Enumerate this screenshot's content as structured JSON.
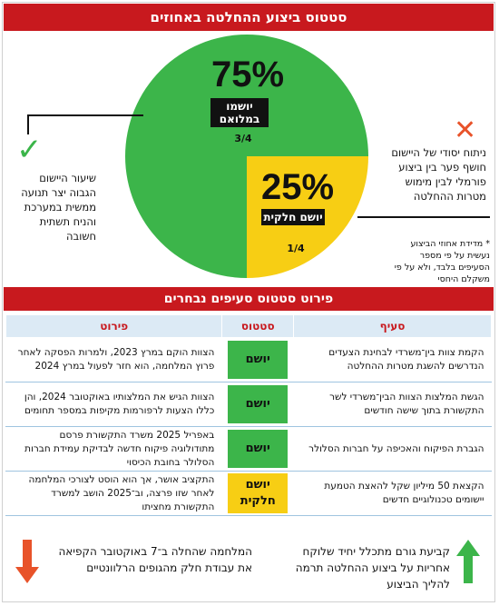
{
  "header": {
    "title": "סטטוס ביצוע ההחלטה באחוזים"
  },
  "chart_data": {
    "type": "pie",
    "slices": [
      {
        "label": "יושמו במלואם",
        "value": 75,
        "fraction": "3/4",
        "color": "#3cb54a"
      },
      {
        "label": "יושם חלקית",
        "value": 25,
        "fraction": "1/4",
        "color": "#f7ce14"
      }
    ]
  },
  "pie_labels": {
    "full_pct": "75%",
    "full_label": "יושמו במלואם",
    "full_fraction": "3/4",
    "partial_pct": "25%",
    "partial_label": "יושם חלקית",
    "partial_fraction": "1/4"
  },
  "notes": {
    "left": "שיעור היישום הגבוה יצר תנועה ממשית במערכת והניח תשתית חשובה",
    "right": "ניתוח יסודי של היישום חושף פער בין ביצוע פורמלי לבין מימוש מטרות ההחלטה",
    "footnote": "* מדידת אחוזי הביצוע נעשית על פי מספר הסעיפים בלבד, ולא על פי משקלם היחסי"
  },
  "table": {
    "title": "פירוט סטטוס סעיפים נבחרים",
    "headers": [
      "סעיף",
      "סטטוס",
      "פירוט"
    ],
    "rows": [
      {
        "section": "הקמת צוות בין־משרדי לבחינת הצעדים הנדרשים להשגת מטרות ההחלטה",
        "status": "יושם",
        "detail": "הצוות הוקם במרץ 2023, ולמרות הפסקה לאחר פרוץ המלחמה, הוא חזר לפעול במרץ 2024"
      },
      {
        "section": "הגשת המלצות הצוות הבין־משרדי לשר התקשורת בתוך שישה חודשים",
        "status": "יושם",
        "detail": "הצוות הגיש את המלצותיו באוקטובר 2024, והן כללו הצעות לרפורמות מקיפות במספר תחומים"
      },
      {
        "section": "הגברת הפיקוח והאכיפה על חברות הסלולר",
        "status": "יושם",
        "detail": "באפריל 2025 משרד התקשורת פרסם מתודולוגיה פיקוח חדשה לבדיקת עמידת חברות הסלולר בחובת הכיסוי"
      },
      {
        "section": "הקצאת 50 מיליון שקל להאצת הטמעת יישומים טכנולוגיים חדשים",
        "status": "יושם חלקית",
        "status_line1": "יושם",
        "status_line2": "חלקית",
        "detail": "התקציב אושר, אך הוא הוסט לצורכי המלחמה לאחר שזו פרצה, וב־2025 הושב למשרד התקשורת מחציתו"
      }
    ]
  },
  "bottom": {
    "right": "קביעת גורם מתכלל יחיד שלוקח אחריות על ביצוע ההחלטה תרמה להליך הביצוע",
    "left": "המלחמה שהחלה ב־7 באוקטובר הקפיאה את עבודת חלק מהגופים הרלוונטיים"
  },
  "colors": {
    "red": "#c8191e",
    "green": "#3cb54a",
    "yellow": "#f7ce14",
    "orange": "#e8532a"
  },
  "icons": {
    "check": "check-icon",
    "x": "x-icon",
    "up": "arrow-up-icon",
    "down": "arrow-down-icon"
  }
}
